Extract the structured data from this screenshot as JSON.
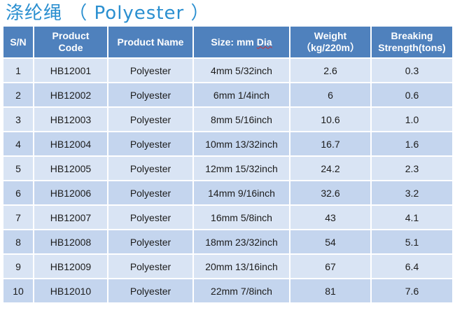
{
  "title": "涤纶绳 （ Polyester ）",
  "table": {
    "headers": {
      "sn": "S/N",
      "code_line1": "Product",
      "code_line2": "Code",
      "name": "Product Name",
      "size_prefix": "Size: mm ",
      "size_dia": "Dia",
      "weight_line1": "Weight",
      "weight_line2": "（kg/220m）",
      "strength_line1": "Breaking",
      "strength_line2": "Strength(tons)"
    },
    "rows": [
      {
        "sn": "1",
        "code": "HB12001",
        "name": "Polyester",
        "size": "4mm 5/32inch",
        "weight": "2.6",
        "strength": "0.3"
      },
      {
        "sn": "2",
        "code": "HB12002",
        "name": "Polyester",
        "size": "6mm 1/4inch",
        "weight": "6",
        "strength": "0.6"
      },
      {
        "sn": "3",
        "code": "HB12003",
        "name": "Polyester",
        "size": "8mm 5/16inch",
        "weight": "10.6",
        "strength": "1.0"
      },
      {
        "sn": "4",
        "code": "HB12004",
        "name": "Polyester",
        "size": "10mm 13/32inch",
        "weight": "16.7",
        "strength": "1.6"
      },
      {
        "sn": "5",
        "code": "HB12005",
        "name": "Polyester",
        "size": "12mm 15/32inch",
        "weight": "24.2",
        "strength": "2.3"
      },
      {
        "sn": "6",
        "code": "HB12006",
        "name": "Polyester",
        "size": "14mm 9/16inch",
        "weight": "32.6",
        "strength": "3.2"
      },
      {
        "sn": "7",
        "code": "HB12007",
        "name": "Polyester",
        "size": "16mm 5/8inch",
        "weight": "43",
        "strength": "4.1"
      },
      {
        "sn": "8",
        "code": "HB12008",
        "name": "Polyester",
        "size": "18mm 23/32inch",
        "weight": "54",
        "strength": "5.1"
      },
      {
        "sn": "9",
        "code": "HB12009",
        "name": "Polyester",
        "size": "20mm 13/16inch",
        "weight": "67",
        "strength": "6.4"
      },
      {
        "sn": "10",
        "code": "HB12010",
        "name": "Polyester",
        "size": "22mm 7/8inch",
        "weight": "81",
        "strength": "7.6"
      }
    ]
  },
  "colors": {
    "title": "#2a8fd0",
    "header_bg": "#4f81bd",
    "row_light": "#d9e4f4",
    "row_dark": "#c4d5ee"
  }
}
